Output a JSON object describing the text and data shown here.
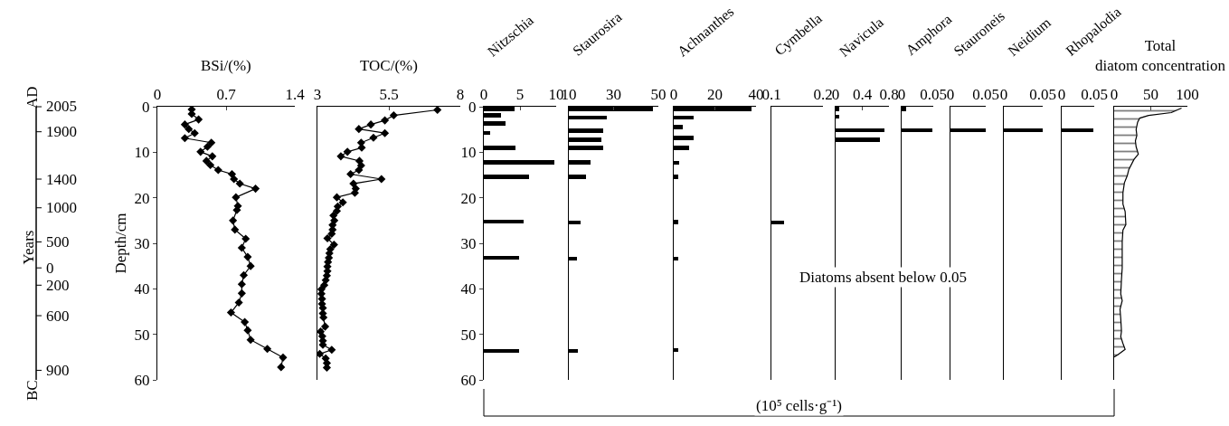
{
  "chart_data": [
    {
      "type": "line",
      "title": "BSi/(%)",
      "ylabel": "Depth/cm",
      "orientation": "horizontal",
      "marker": "diamond",
      "color": "#000000",
      "xlim": [
        0,
        1.4
      ],
      "xticks": [
        0,
        0.7,
        1.4
      ],
      "ylim": [
        60,
        0
      ],
      "yticks": [
        0,
        10,
        20,
        30,
        40,
        50,
        60
      ],
      "annotations": [
        "Years",
        "AD",
        "BC",
        "2005",
        "1900",
        "1400",
        "1000",
        "500",
        "0",
        "200",
        "600",
        "900"
      ],
      "x": [
        0.6,
        1.6,
        2.8,
        3.9,
        4.9,
        5.8,
        6.9,
        7.9,
        8.8,
        9.9,
        10.9,
        11.9,
        12.8,
        13.9,
        14.8,
        15.9,
        16.9,
        18.0,
        19.9,
        21.8,
        22.7,
        25.0,
        27.0,
        29.0,
        31.0,
        33.0,
        35.0,
        37.0,
        39.0,
        41.0,
        43.0,
        45.2,
        47.3,
        49.1,
        51.2,
        53.2,
        55.1,
        57.2
      ],
      "values": [
        0.35,
        0.35,
        0.42,
        0.28,
        0.32,
        0.38,
        0.28,
        0.55,
        0.51,
        0.44,
        0.56,
        0.5,
        0.54,
        0.62,
        0.76,
        0.78,
        0.84,
        1.0,
        0.8,
        0.82,
        0.81,
        0.77,
        0.79,
        0.9,
        0.86,
        0.92,
        0.95,
        0.88,
        0.86,
        0.86,
        0.83,
        0.75,
        0.89,
        0.92,
        0.95,
        1.12,
        1.28,
        1.26
      ]
    },
    {
      "type": "line",
      "title": "TOC/(%)",
      "orientation": "horizontal",
      "marker": "diamond",
      "color": "#000000",
      "tick_labels": "x",
      "xlim": [
        3,
        8
      ],
      "xticks": [
        3,
        5.5,
        8
      ],
      "ylim": [
        60,
        0
      ],
      "x": [
        0.7,
        1.9,
        3.0,
        3.9,
        4.9,
        5.8,
        6.8,
        7.9,
        9.0,
        9.9,
        10.9,
        11.9,
        12.9,
        13.9,
        14.8,
        15.9,
        16.9,
        18.0,
        18.9,
        19.9,
        21.0,
        21.9,
        22.9,
        23.9,
        25.0,
        26.0,
        27.0,
        27.9,
        28.9,
        30.3,
        31.3,
        32.2,
        33.2,
        34.1,
        35.1,
        36.1,
        37.1,
        38.1,
        39.2,
        40.1,
        41.1,
        42.2,
        43.3,
        44.2,
        45.4,
        46.3,
        48.3,
        49.4,
        50.4,
        51.4,
        52.3,
        53.4,
        54.3,
        55.3,
        56.3,
        57.3
      ],
      "values": [
        7.2,
        5.67,
        5.36,
        4.87,
        4.45,
        5.36,
        4.96,
        4.53,
        4.55,
        4.05,
        3.82,
        4.47,
        4.53,
        4.45,
        4.16,
        5.24,
        4.26,
        4.34,
        4.31,
        3.68,
        3.89,
        3.71,
        3.68,
        3.56,
        3.59,
        3.53,
        3.53,
        3.5,
        3.35,
        3.58,
        3.45,
        3.42,
        3.4,
        3.37,
        3.35,
        3.35,
        3.33,
        3.29,
        3.24,
        3.14,
        3.14,
        3.16,
        3.16,
        3.19,
        3.19,
        3.21,
        3.27,
        3.11,
        3.17,
        3.19,
        3.19,
        3.5,
        3.08,
        3.29,
        3.33,
        3.33
      ]
    },
    {
      "type": "bar",
      "title": "Nitzschia",
      "orientation": "horizontal",
      "color": "#000000",
      "xlim": [
        0,
        10
      ],
      "xticks": [
        0,
        5,
        10
      ],
      "ylim": [
        60,
        0
      ],
      "yticks": [
        0,
        10,
        20,
        30,
        40,
        50,
        60
      ],
      "annotations": [
        "(10⁵ cells·g⁻¹)"
      ],
      "x": [
        0.45,
        1.9,
        3.7,
        5.8,
        9.0,
        12.2,
        15.4,
        25.2,
        33.2,
        53.6
      ],
      "values": [
        4.2,
        2.4,
        3.0,
        0.9,
        4.4,
        9.7,
        6.2,
        5.5,
        4.9,
        4.9
      ]
    },
    {
      "type": "bar",
      "title": "Staurosira",
      "orientation": "horizontal",
      "color": "#000000",
      "tick_labels": "x",
      "xlim": [
        10,
        50
      ],
      "xticks": [
        10,
        30,
        50
      ],
      "ylim": [
        60,
        0
      ],
      "x": [
        0.45,
        2.4,
        5.3,
        7.2,
        9.0,
        12.2,
        15.4,
        25.4,
        33.4,
        53.6
      ],
      "values": [
        47.7,
        26.9,
        25.2,
        24.6,
        25.2,
        19.5,
        17.8,
        15.1,
        13.5,
        14.0
      ]
    },
    {
      "type": "bar",
      "title": "Achnanthes",
      "orientation": "horizontal",
      "color": "#000000",
      "tick_labels": "x",
      "xlim": [
        0,
        40
      ],
      "xticks": [
        0,
        20,
        40
      ],
      "ylim": [
        60,
        0
      ],
      "x": [
        0.5,
        2.4,
        4.5,
        6.9,
        9.0,
        12.3,
        15.4,
        25.3,
        33.4,
        53.4
      ],
      "values": [
        38.0,
        9.5,
        4.4,
        9.5,
        7.6,
        2.5,
        2.2,
        2.2,
        2.2,
        2.2
      ]
    },
    {
      "type": "bar",
      "title": "Cymbella",
      "orientation": "horizontal",
      "color": "#000000",
      "tick_labels": "x",
      "xlim": [
        0.1,
        0.2
      ],
      "xticks": [
        0.1,
        0.2
      ],
      "ylim": [
        60,
        0
      ],
      "x": [
        25.4
      ],
      "values": [
        0.125
      ]
    },
    {
      "type": "bar",
      "title": "Navicula",
      "orientation": "horizontal",
      "color": "#000000",
      "tick_labels": "x",
      "xlim": [
        0,
        0.8
      ],
      "xticks": [
        0,
        0.4,
        0.8
      ],
      "ylim": [
        60,
        0
      ],
      "x": [
        0.45,
        2.2,
        5.2,
        7.3
      ],
      "values": [
        0.06,
        0.05,
        0.73,
        0.67
      ]
    },
    {
      "type": "bar",
      "title": "Amphora",
      "orientation": "horizontal",
      "color": "#000000",
      "tick_labels": "x",
      "xlim": [
        0,
        0.05
      ],
      "xticks": [
        0,
        0.05
      ],
      "ylim": [
        60,
        0
      ],
      "x": [
        0.45,
        5.2
      ],
      "values": [
        0.007,
        0.048
      ]
    },
    {
      "type": "bar",
      "title": "Stauroneis",
      "orientation": "horizontal",
      "color": "#000000",
      "tick_labels": "x",
      "xlim": [
        0,
        0.05
      ],
      "xticks": [
        0,
        0.05
      ],
      "ylim": [
        60,
        0
      ],
      "annotations": [
        "Diatoms absent below 0.05"
      ],
      "x": [
        5.2
      ],
      "values": [
        0.05
      ]
    },
    {
      "type": "bar",
      "title": "Neidium",
      "orientation": "horizontal",
      "color": "#000000",
      "tick_labels": "x",
      "xlim": [
        0,
        0.05
      ],
      "xticks": [
        0,
        0.05
      ],
      "ylim": [
        60,
        0
      ],
      "x": [
        5.2
      ],
      "values": [
        0.05
      ]
    },
    {
      "type": "bar",
      "title": "Rhopalodia",
      "orientation": "horizontal",
      "color": "#000000",
      "tick_labels": "x",
      "xlim": [
        0,
        0.05
      ],
      "xticks": [
        0,
        0.05
      ],
      "ylim": [
        60,
        0
      ],
      "x": [
        5.2
      ],
      "values": [
        0.049
      ]
    },
    {
      "type": "area",
      "title": "Total diatom concentration",
      "orientation": "horizontal",
      "color": "#000000",
      "tick_labels": "x",
      "xlim": [
        0,
        100
      ],
      "xticks": [
        0,
        50,
        100
      ],
      "ylim": [
        60,
        0
      ],
      "x": [
        0.3,
        1.3,
        1.9,
        2.5,
        3.4,
        5.0,
        6.3,
        7.5,
        8.8,
        10.4,
        11.6,
        13.8,
        15.1,
        16.7,
        18.9,
        21.4,
        23.0,
        25.9,
        27.1,
        29.7,
        32.8,
        35.4,
        37.9,
        41.1,
        42.6,
        44.5,
        46.5,
        49.3,
        50.5,
        52.0,
        53.3,
        54.5,
        55.0
      ],
      "values": [
        92,
        78,
        47,
        35,
        32,
        30,
        31,
        29,
        30,
        33,
        27,
        20,
        18,
        14,
        12,
        12,
        15,
        16,
        12,
        11,
        11,
        11,
        10,
        9,
        11,
        8,
        9,
        10,
        9,
        12,
        15,
        5,
        0
      ]
    }
  ]
}
